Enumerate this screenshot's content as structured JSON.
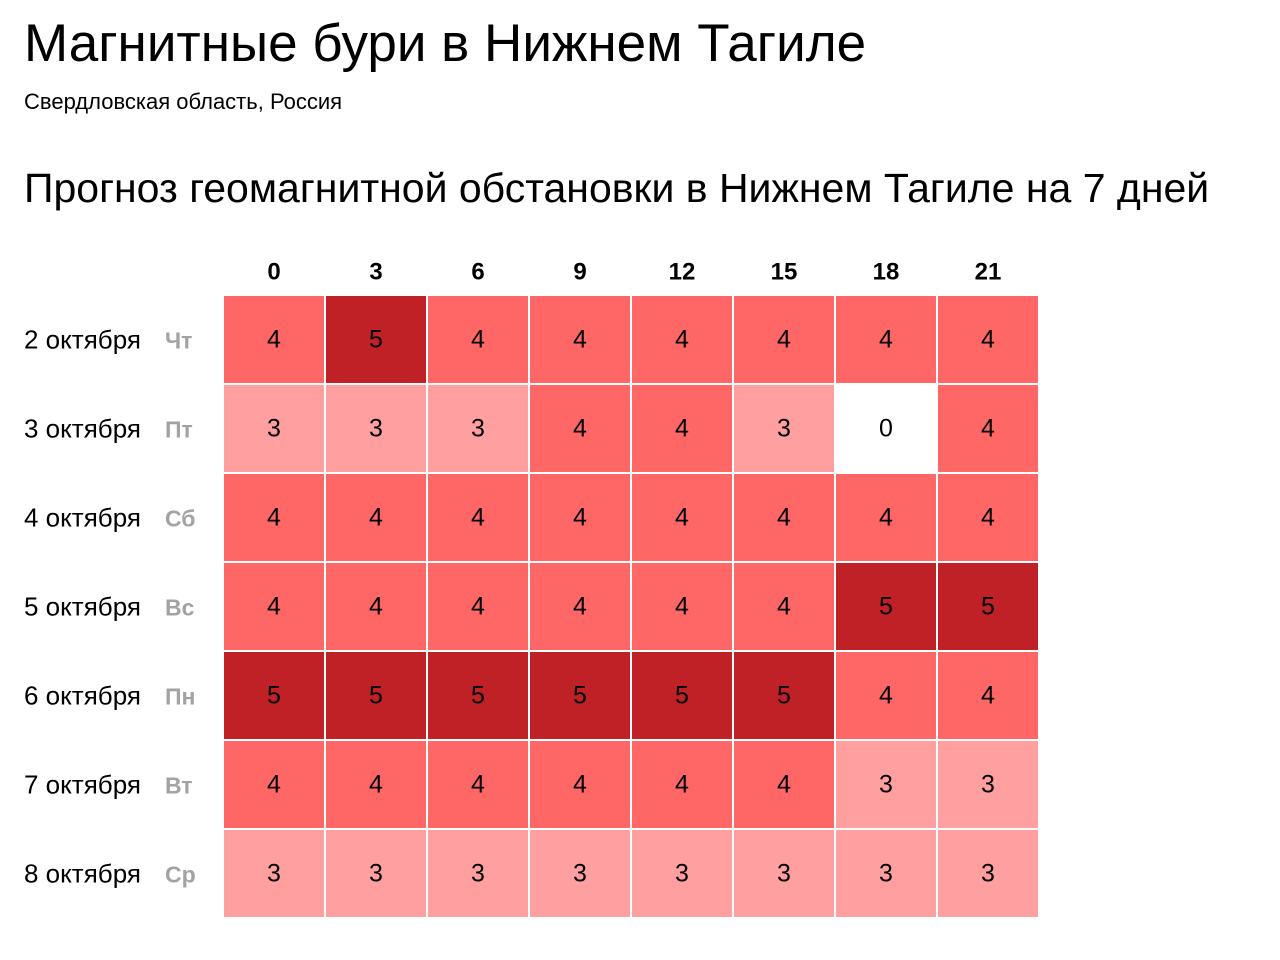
{
  "header": {
    "title": "Магнитные бури в Нижнем Тагиле",
    "subtitle": "Свердловская область, Россия"
  },
  "section": {
    "title": "Прогноз геомагнитной обстановки в Нижнем Тагиле на 7 дней"
  },
  "chart_data": {
    "type": "heatmap",
    "title": "Прогноз геомагнитной обстановки в Нижнем Тагиле на 7 дней",
    "x": [
      "0",
      "3",
      "6",
      "9",
      "12",
      "15",
      "18",
      "21"
    ],
    "rows": [
      {
        "date": "2 октября",
        "weekday": "Чт",
        "values": [
          4,
          5,
          4,
          4,
          4,
          4,
          4,
          4
        ]
      },
      {
        "date": "3 октября",
        "weekday": "Пт",
        "values": [
          3,
          3,
          3,
          4,
          4,
          3,
          0,
          4
        ]
      },
      {
        "date": "4 октября",
        "weekday": "Сб",
        "values": [
          4,
          4,
          4,
          4,
          4,
          4,
          4,
          4
        ]
      },
      {
        "date": "5 октября",
        "weekday": "Вс",
        "values": [
          4,
          4,
          4,
          4,
          4,
          4,
          5,
          5
        ]
      },
      {
        "date": "6 октября",
        "weekday": "Пн",
        "values": [
          5,
          5,
          5,
          5,
          5,
          5,
          4,
          4
        ]
      },
      {
        "date": "7 октября",
        "weekday": "Вт",
        "values": [
          4,
          4,
          4,
          4,
          4,
          4,
          3,
          3
        ]
      },
      {
        "date": "8 октября",
        "weekday": "Ср",
        "values": [
          3,
          3,
          3,
          3,
          3,
          3,
          3,
          3
        ]
      }
    ],
    "color_scale": {
      "0": "#ffffff",
      "3": "#ff9f9f",
      "4": "#ff6666",
      "5": "#c02126"
    },
    "grid": false,
    "legend": "none"
  }
}
